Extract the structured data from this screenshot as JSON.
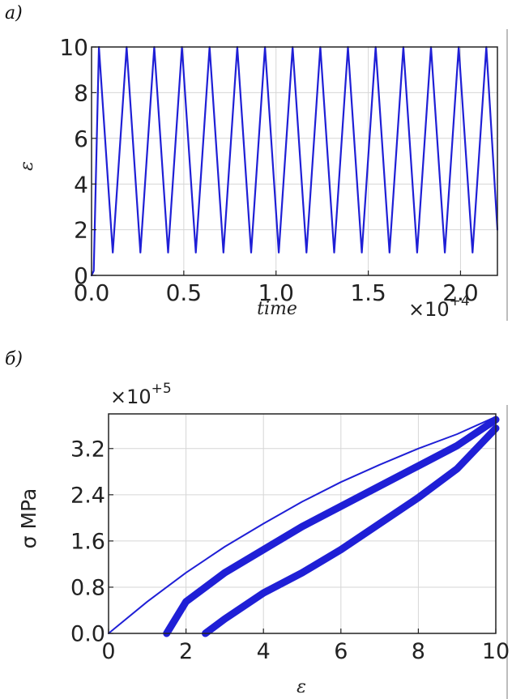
{
  "panel_a": {
    "label": "а)"
  },
  "panel_b": {
    "label": "б)"
  },
  "chart_data": [
    {
      "type": "line",
      "xlabel": "time",
      "ylabel": "ε",
      "x_multiplier": "×10",
      "x_exponent": "+4",
      "xlim": [
        0,
        2.2
      ],
      "ylim": [
        0,
        10
      ],
      "x_ticks": [
        "0.0",
        "0.5",
        "1.0",
        "1.5",
        "2.0"
      ],
      "y_ticks": [
        "0",
        "2",
        "4",
        "6",
        "8",
        "10"
      ],
      "grid": true,
      "line_color": "#1f1fd6",
      "series": [
        {
          "x": [
            0,
            0.012,
            0.04,
            0.115,
            0.19,
            0.265,
            0.34,
            0.415,
            0.49,
            0.565,
            0.64,
            0.715,
            0.79,
            0.865,
            0.94,
            1.015,
            1.09,
            1.165,
            1.24,
            1.315,
            1.39,
            1.465,
            1.54,
            1.615,
            1.69,
            1.765,
            1.84,
            1.915,
            1.99,
            2.065,
            2.14,
            2.2
          ],
          "y": [
            0,
            0.2,
            10,
            1,
            10,
            1,
            10,
            1,
            10,
            1,
            10,
            1,
            10,
            1,
            10,
            1,
            10,
            1,
            10,
            1,
            10,
            1,
            10,
            1,
            10,
            1,
            10,
            1,
            10,
            1,
            10,
            2
          ]
        }
      ]
    },
    {
      "type": "line",
      "xlabel": "ε",
      "ylabel": "σ MPa",
      "y_multiplier": "×10",
      "y_exponent": "+5",
      "xlim": [
        0,
        10
      ],
      "ylim": [
        0,
        3.8
      ],
      "x_ticks": [
        "0",
        "2",
        "4",
        "6",
        "8",
        "10"
      ],
      "y_ticks": [
        "0.0",
        "0.8",
        "1.6",
        "2.4",
        "3.2"
      ],
      "grid": true,
      "line_color": "#1f1fd6",
      "series": [
        {
          "x": [
            0,
            1,
            2,
            3,
            4,
            5,
            6,
            7,
            8,
            9,
            10
          ],
          "y": [
            0,
            0.55,
            1.05,
            1.5,
            1.9,
            2.28,
            2.62,
            2.92,
            3.2,
            3.45,
            3.75
          ]
        },
        {
          "x": [
            1.5,
            2,
            3,
            4,
            5,
            6,
            7,
            8,
            9,
            10
          ],
          "y": [
            0,
            0.55,
            1.05,
            1.45,
            1.85,
            2.2,
            2.55,
            2.9,
            3.25,
            3.7
          ]
        },
        {
          "x": [
            2.5,
            3,
            4,
            5,
            6,
            7,
            8,
            9,
            10
          ],
          "y": [
            0,
            0.25,
            0.7,
            1.05,
            1.45,
            1.9,
            2.35,
            2.85,
            3.55
          ]
        }
      ]
    }
  ]
}
